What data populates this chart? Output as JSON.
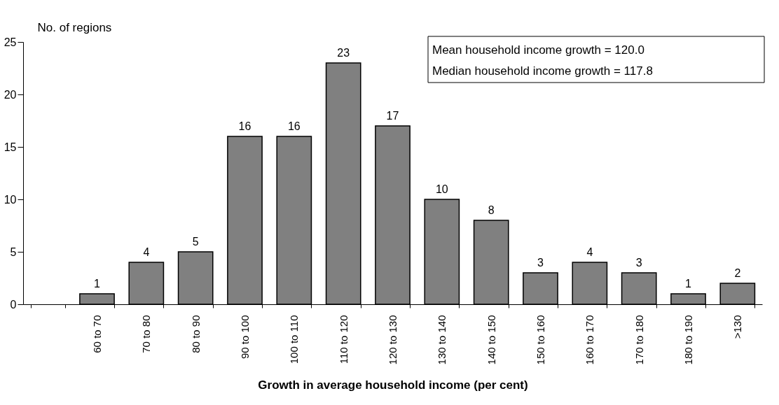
{
  "chart_data": {
    "type": "bar",
    "ylabel": "No. of regions",
    "xlabel": "Growth in average household income (per cent)",
    "categories": [
      null,
      "60 to 70",
      "70 to 80",
      "80 to 90",
      "90 to 100",
      "100 to 110",
      "110 to 120",
      "120 to 130",
      "130 to 140",
      "140 to 150",
      "150 to 160",
      "160 to 170",
      "170 to 180",
      "180 to 190",
      ">130"
    ],
    "values": [
      null,
      1,
      4,
      5,
      16,
      16,
      23,
      17,
      10,
      8,
      3,
      4,
      3,
      1,
      2
    ],
    "color": "#808080",
    "ylim": [
      0,
      25
    ],
    "yticks": [
      0,
      5,
      10,
      15,
      20,
      25
    ],
    "data_labels": true,
    "grid": false,
    "annotations": [
      "Mean household income growth = 120.0",
      "Median household income growth = 117.8"
    ]
  }
}
